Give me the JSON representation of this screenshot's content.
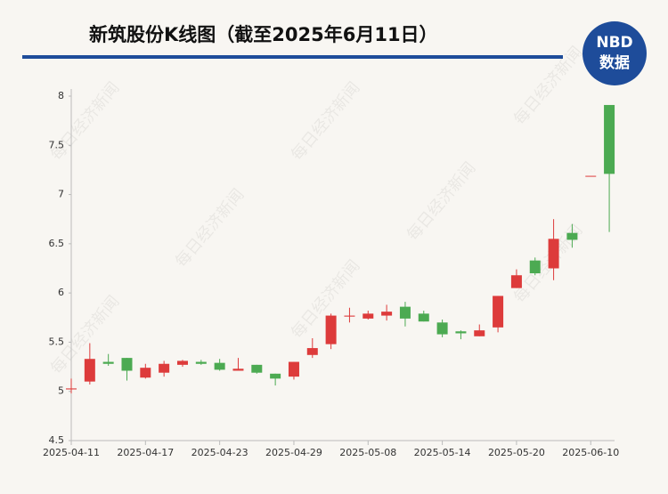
{
  "logo": [
    "NBD",
    "数据"
  ],
  "watermark": "每日经济新闻",
  "chart_data": {
    "type": "candlestick",
    "title": "新筑股份K线图（截至2025年6月11日）",
    "categories": [
      "2025-04-11",
      null,
      null,
      null,
      "2025-04-17",
      null,
      null,
      null,
      "2025-04-23",
      null,
      null,
      null,
      "2025-04-29",
      null,
      null,
      null,
      "2025-05-08",
      null,
      null,
      null,
      "2025-05-14",
      null,
      null,
      null,
      "2025-05-20",
      null,
      null,
      null,
      "2025-06-10",
      null
    ],
    "open": [
      5.02,
      5.1,
      5.3,
      5.34,
      5.14,
      5.19,
      5.27,
      5.3,
      5.29,
      5.21,
      5.27,
      5.18,
      5.15,
      5.37,
      5.48,
      5.76,
      5.74,
      5.77,
      5.86,
      5.79,
      5.7,
      5.61,
      5.56,
      5.65,
      6.05,
      6.33,
      6.25,
      6.61,
      7.19,
      7.91
    ],
    "high": [
      5.13,
      5.49,
      5.38,
      5.34,
      5.28,
      5.31,
      5.32,
      5.32,
      5.33,
      5.34,
      5.27,
      5.18,
      5.3,
      5.54,
      5.79,
      5.85,
      5.82,
      5.88,
      5.91,
      5.82,
      5.73,
      5.62,
      5.68,
      5.97,
      6.24,
      6.36,
      6.75,
      6.7,
      7.19,
      7.91
    ],
    "low": [
      4.98,
      5.07,
      5.26,
      5.11,
      5.13,
      5.15,
      5.25,
      5.27,
      5.21,
      5.21,
      5.18,
      5.06,
      5.12,
      5.34,
      5.43,
      5.7,
      5.73,
      5.72,
      5.66,
      5.71,
      5.55,
      5.53,
      5.56,
      5.6,
      6.05,
      6.18,
      6.13,
      6.46,
      7.19,
      6.62
    ],
    "close": [
      5.03,
      5.33,
      5.28,
      5.21,
      5.24,
      5.28,
      5.31,
      5.28,
      5.22,
      5.23,
      5.19,
      5.13,
      5.3,
      5.44,
      5.77,
      5.77,
      5.79,
      5.81,
      5.74,
      5.71,
      5.58,
      5.59,
      5.62,
      5.97,
      6.18,
      6.2,
      6.55,
      6.54,
      7.19,
      7.21
    ],
    "up_color": "#dd3b3b",
    "down_color": "#4caa52",
    "ylim": [
      4.5,
      8
    ],
    "yticks": [
      4.5,
      5,
      5.5,
      6,
      6.5,
      7,
      7.5,
      8
    ],
    "grid": false
  }
}
